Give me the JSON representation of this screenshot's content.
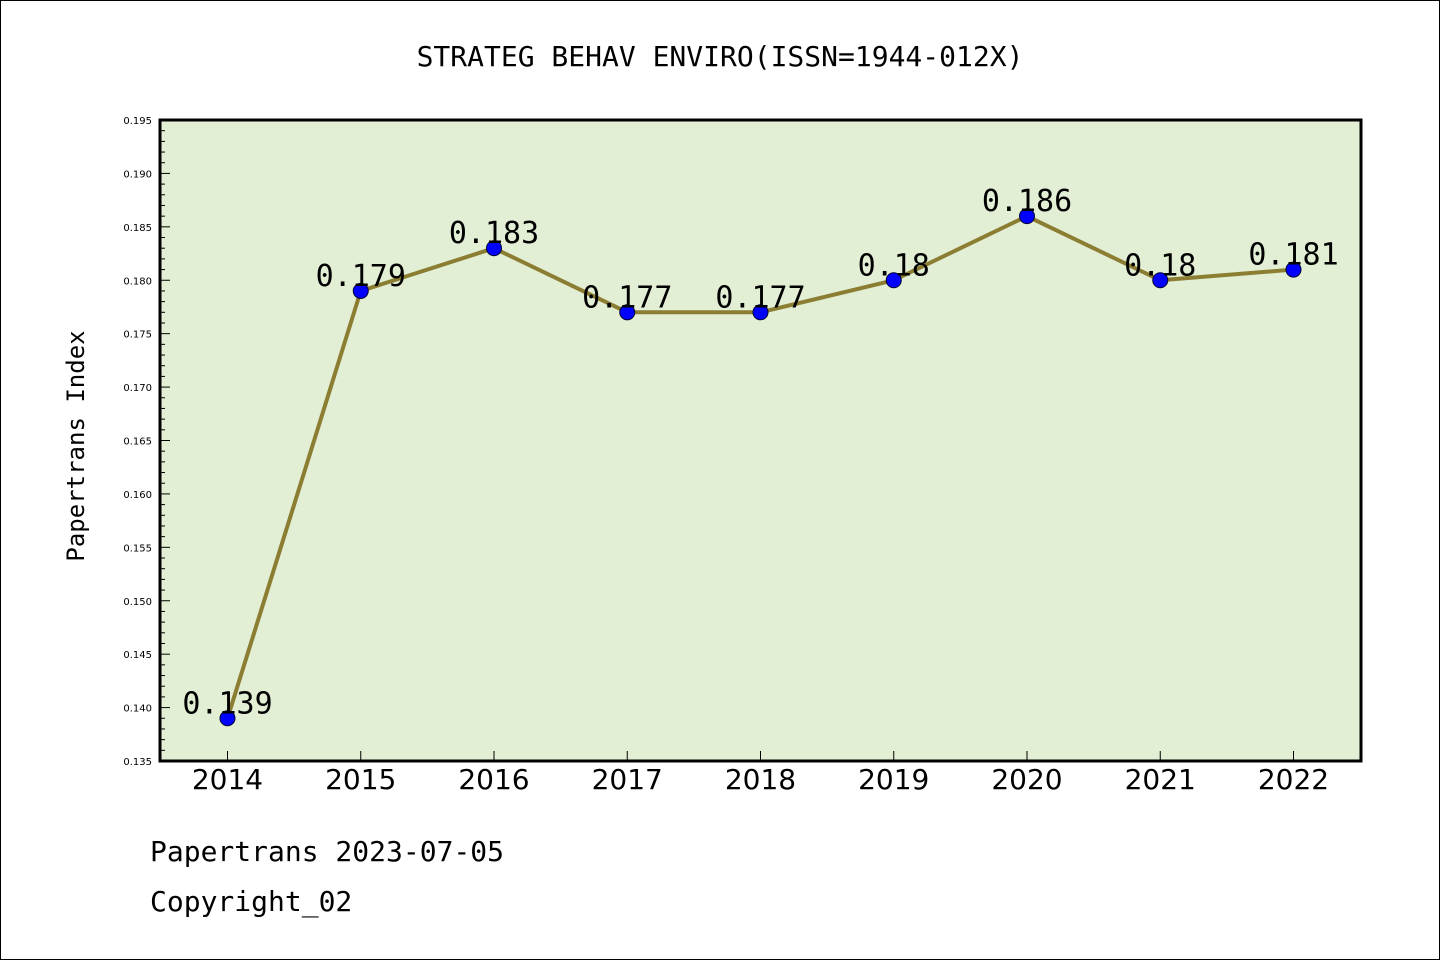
{
  "chart_data": {
    "type": "line",
    "title": "STRATEG BEHAV ENVIRO(ISSN=1944-012X)",
    "xlabel": "",
    "ylabel": "Papertrans Index",
    "categories": [
      "2014",
      "2015",
      "2016",
      "2017",
      "2018",
      "2019",
      "2020",
      "2021",
      "2022"
    ],
    "values": [
      0.139,
      0.179,
      0.183,
      0.177,
      0.177,
      0.18,
      0.186,
      0.18,
      0.181
    ],
    "data_labels": [
      "0.139",
      "0.179",
      "0.183",
      "0.177",
      "0.177",
      "0.18",
      "0.186",
      "0.18",
      "0.181"
    ],
    "ylim": [
      0.135,
      0.195
    ],
    "yticks": [
      "0.135",
      "0.140",
      "0.145",
      "0.150",
      "0.155",
      "0.160",
      "0.165",
      "0.170",
      "0.175",
      "0.180",
      "0.185",
      "0.190",
      "0.195"
    ],
    "grid": false,
    "colors": {
      "plot_background": "#e2efd5",
      "line": "#8b7d32",
      "marker": "#0000ff"
    }
  },
  "footer": {
    "line1": "Papertrans 2023-07-05",
    "line2": "Copyright_02"
  }
}
